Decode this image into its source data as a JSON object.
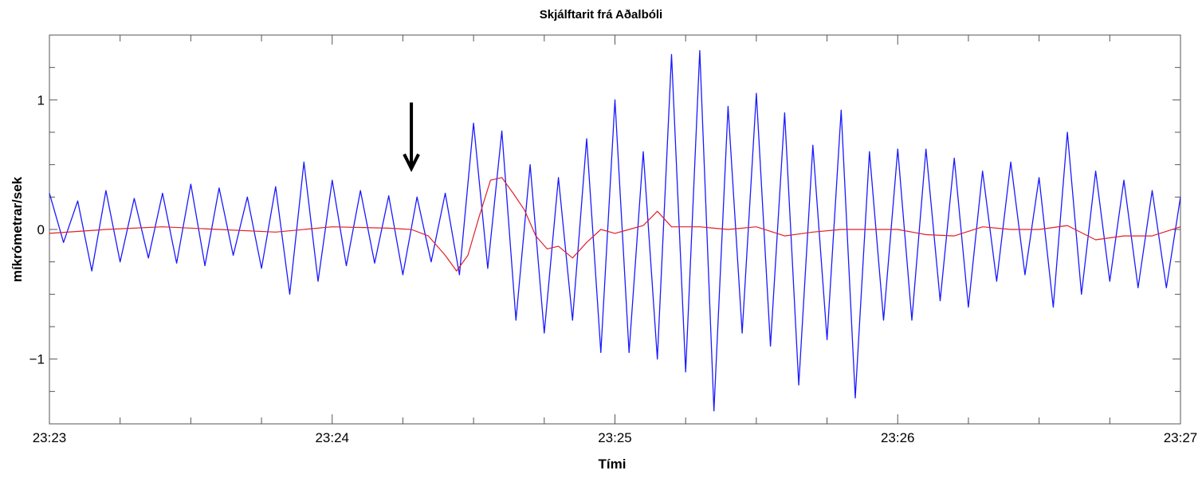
{
  "chart_data": {
    "type": "line",
    "title": "Skjálftarit frá Aðalbóli",
    "xlabel": "Tími",
    "ylabel": "míkrómetrar/sek",
    "x_ticks": [
      "23:23",
      "23:24",
      "23:25",
      "23:26",
      "23:27"
    ],
    "x_range_minutes": [
      0,
      4
    ],
    "y_ticks": [
      {
        "value": 1,
        "label": "1"
      },
      {
        "value": 0,
        "label": "0"
      },
      {
        "value": -1,
        "label": "−1"
      }
    ],
    "ylim": [
      -1.5,
      1.5
    ],
    "grid": false,
    "annotation": {
      "type": "arrow-down",
      "x_minute": 1.28,
      "y_top": 0.98,
      "y_bottom": 0.47
    },
    "series": [
      {
        "color": "#1a1aff",
        "x": [
          0.0,
          0.05,
          0.1,
          0.15,
          0.2,
          0.25,
          0.3,
          0.35,
          0.4,
          0.45,
          0.5,
          0.55,
          0.6,
          0.65,
          0.7,
          0.75,
          0.8,
          0.85,
          0.9,
          0.95,
          1.0,
          1.05,
          1.1,
          1.15,
          1.2,
          1.25,
          1.3,
          1.35,
          1.4,
          1.45,
          1.5,
          1.55,
          1.6,
          1.65,
          1.7,
          1.75,
          1.8,
          1.85,
          1.9,
          1.95,
          2.0,
          2.05,
          2.1,
          2.15,
          2.2,
          2.25,
          2.3,
          2.35,
          2.4,
          2.45,
          2.5,
          2.55,
          2.6,
          2.65,
          2.7,
          2.75,
          2.8,
          2.85,
          2.9,
          2.95,
          3.0,
          3.05,
          3.1,
          3.15,
          3.2,
          3.25,
          3.3,
          3.35,
          3.4,
          3.45,
          3.5,
          3.55,
          3.6,
          3.65,
          3.7,
          3.75,
          3.8,
          3.85,
          3.9,
          3.95,
          4.0
        ],
        "values": [
          0.28,
          -0.1,
          0.22,
          -0.32,
          0.3,
          -0.25,
          0.24,
          -0.22,
          0.28,
          -0.26,
          0.35,
          -0.28,
          0.32,
          -0.2,
          0.25,
          -0.3,
          0.33,
          -0.5,
          0.52,
          -0.4,
          0.38,
          -0.28,
          0.3,
          -0.26,
          0.26,
          -0.35,
          0.25,
          -0.25,
          0.28,
          -0.35,
          0.82,
          -0.3,
          0.76,
          -0.7,
          0.5,
          -0.8,
          0.4,
          -0.7,
          0.7,
          -0.95,
          1.0,
          -0.95,
          0.6,
          -1.0,
          1.35,
          -1.1,
          1.38,
          -1.4,
          0.95,
          -0.8,
          1.05,
          -0.9,
          0.9,
          -1.2,
          0.65,
          -0.85,
          0.92,
          -1.3,
          0.6,
          -0.7,
          0.62,
          -0.7,
          0.62,
          -0.55,
          0.55,
          -0.6,
          0.45,
          -0.4,
          0.52,
          -0.35,
          0.4,
          -0.6,
          0.75,
          -0.5,
          0.45,
          -0.4,
          0.38,
          -0.45,
          0.3,
          -0.45,
          0.25
        ]
      },
      {
        "color": "#e0202a",
        "x": [
          0.0,
          0.2,
          0.4,
          0.6,
          0.8,
          1.0,
          1.2,
          1.28,
          1.34,
          1.4,
          1.44,
          1.48,
          1.52,
          1.56,
          1.6,
          1.64,
          1.68,
          1.72,
          1.76,
          1.8,
          1.85,
          1.9,
          1.95,
          2.0,
          2.05,
          2.1,
          2.15,
          2.2,
          2.3,
          2.4,
          2.5,
          2.6,
          2.7,
          2.8,
          2.9,
          3.0,
          3.1,
          3.2,
          3.3,
          3.4,
          3.5,
          3.6,
          3.7,
          3.8,
          3.9,
          4.0
        ],
        "values": [
          -0.03,
          0.0,
          0.02,
          0.0,
          -0.02,
          0.02,
          0.01,
          0.0,
          -0.05,
          -0.2,
          -0.32,
          -0.2,
          0.1,
          0.38,
          0.4,
          0.28,
          0.15,
          -0.05,
          -0.15,
          -0.13,
          -0.22,
          -0.1,
          0.0,
          -0.03,
          0.0,
          0.03,
          0.14,
          0.02,
          0.02,
          0.0,
          0.02,
          -0.05,
          -0.02,
          0.0,
          0.0,
          0.0,
          -0.04,
          -0.05,
          0.02,
          0.0,
          0.0,
          0.03,
          -0.08,
          -0.05,
          -0.05,
          0.02
        ]
      }
    ]
  }
}
